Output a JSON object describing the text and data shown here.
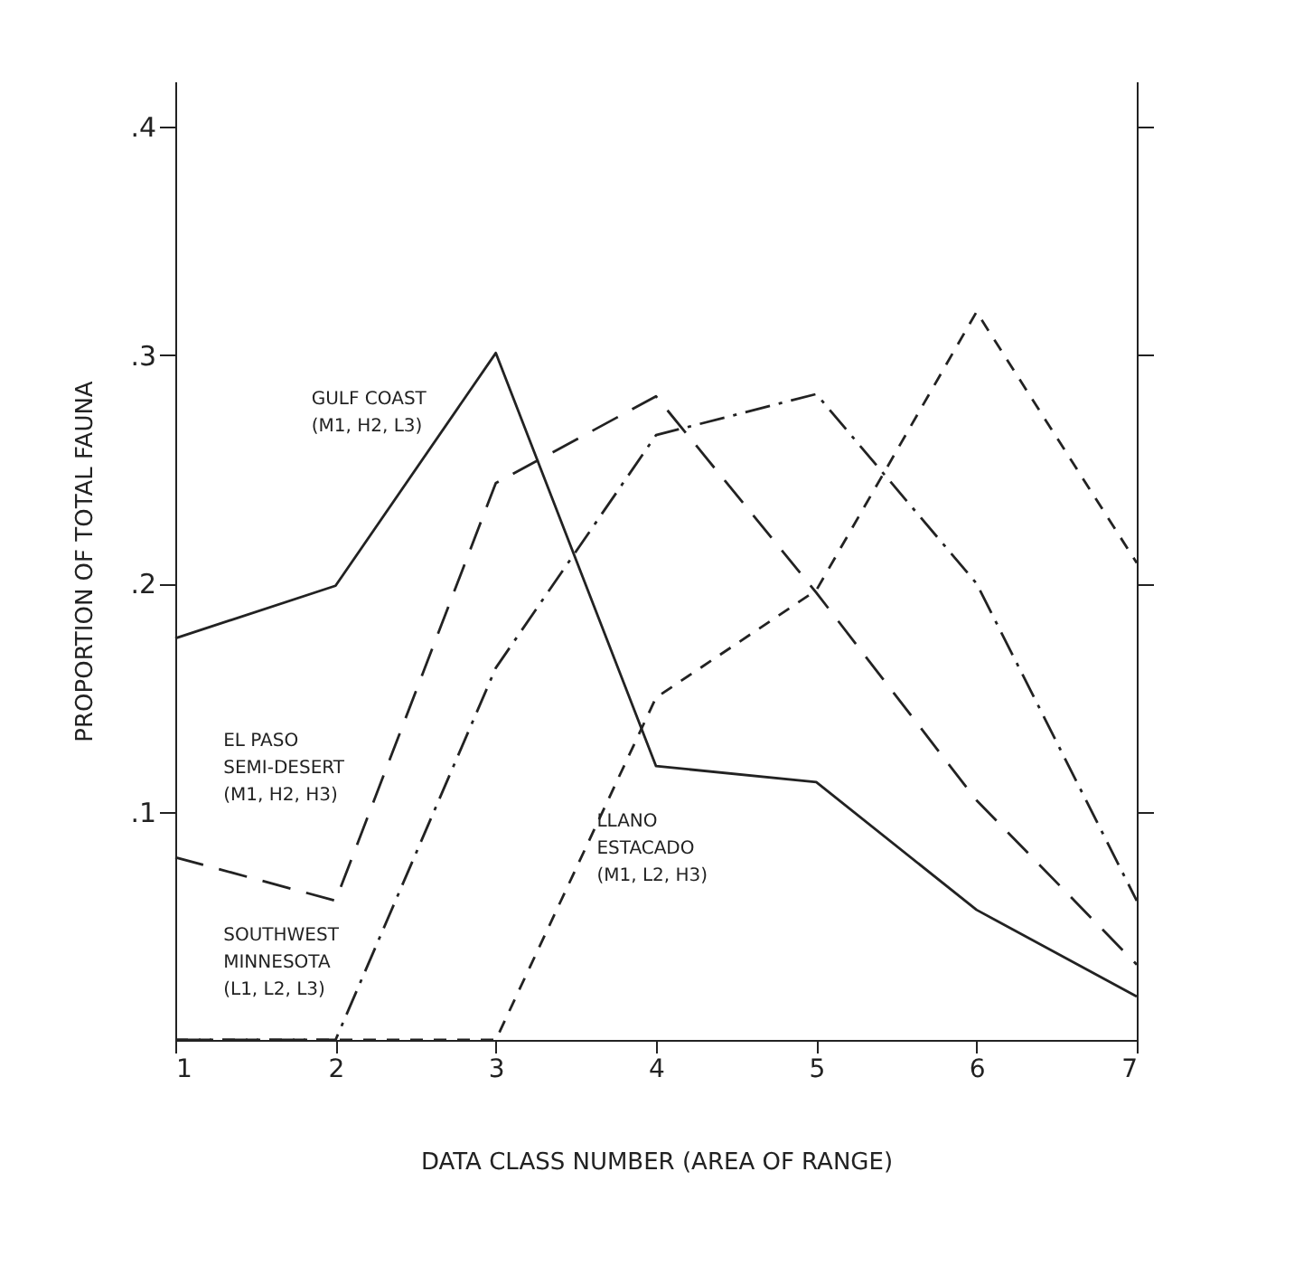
{
  "chart_data": {
    "type": "line",
    "xlabel": "DATA CLASS NUMBER (AREA OF RANGE)",
    "ylabel": "PROPORTION OF TOTAL FAUNA",
    "x": [
      1,
      2,
      3,
      4,
      5,
      6,
      7
    ],
    "series": [
      {
        "name": "GULF COAST\n(M1, H2, L3)",
        "color": "#222222",
        "line_style": "solid",
        "values": [
          0.176,
          0.199,
          0.301,
          0.12,
          0.113,
          0.057,
          0.019
        ]
      },
      {
        "name": "EL PASO\nSEMI-DESERT\n(M1, H2, H3)",
        "color": "#222222",
        "line_style": "dashed",
        "values": [
          0.08,
          0.061,
          0.244,
          0.282,
          0.196,
          0.105,
          0.033
        ]
      },
      {
        "name": "SOUTHWEST\nMINNESOTA\n(L1, L2, L3)",
        "color": "#222222",
        "line_style": "dashdot",
        "values": [
          0,
          0,
          0.163,
          0.265,
          0.283,
          0.2,
          0.061
        ]
      },
      {
        "name": "LLANO\nESTACADO\n(M1, L2, H3)",
        "color": "#222222",
        "line_style": "dotted",
        "values": [
          0,
          0,
          0,
          0.15,
          0.197,
          0.319,
          0.209
        ]
      }
    ],
    "xlim": [
      1,
      7
    ],
    "xticks": [
      1,
      2,
      3,
      4,
      5,
      6,
      7
    ],
    "ylim": [
      0,
      0.42
    ],
    "yticks": [
      {
        "value": 0.1,
        "label": ".1"
      },
      {
        "value": 0.2,
        "label": ".2"
      },
      {
        "value": 0.3,
        "label": ".3"
      },
      {
        "value": 0.4,
        "label": ".4"
      }
    ],
    "grid": false,
    "marker": "none"
  }
}
